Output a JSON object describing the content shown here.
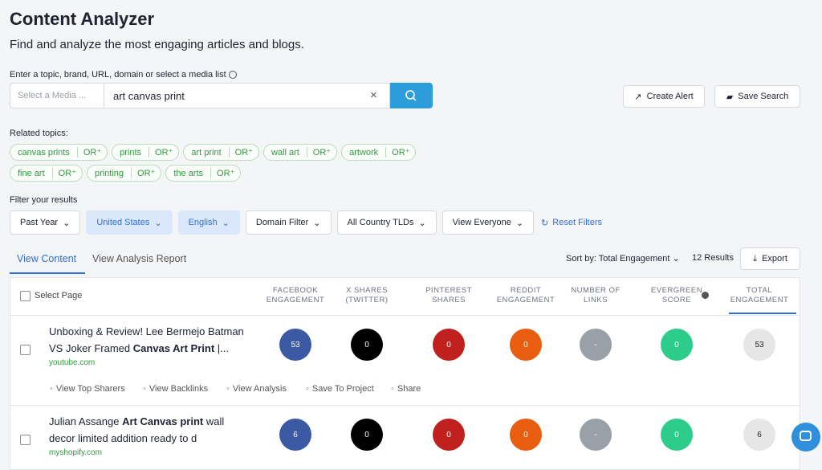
{
  "header": {
    "title": "Content Analyzer",
    "subtitle": "Find and analyze the most engaging articles and blogs."
  },
  "search": {
    "label": "Enter a topic, brand, URL, domain or select a media list",
    "media_placeholder": "Select a Media ...",
    "query": "art canvas print"
  },
  "actions": [
    "Create Alert",
    "Save Search"
  ],
  "related": {
    "label": "Related topics:",
    "or_label": "OR⁺",
    "topics": [
      "canvas prints",
      "prints",
      "art print",
      "wall art",
      "artwork",
      "fine art",
      "printing",
      "the arts"
    ]
  },
  "filters": {
    "label": "Filter your results",
    "items": [
      "Past Year",
      "United States",
      "English",
      "Domain Filter",
      "All Country TLDs",
      "View Everyone"
    ],
    "reset": "Reset Filters"
  },
  "tabs": [
    "View Content",
    "View Analysis Report"
  ],
  "toolbar": {
    "sort": "Sort by: Total Engagement",
    "results": "12 Results",
    "export": "Export"
  },
  "table": {
    "select_page": "Select Page",
    "columns": [
      "FACEBOOK ENGAGEMENT",
      "X SHARES (TWITTER)",
      "PINTEREST SHARES",
      "REDDIT ENGAGEMENT",
      "NUMBER OF LINKS",
      "EVERGREEN SCORE",
      "TOTAL ENGAGEMENT"
    ],
    "row_actions": [
      "View Top Sharers",
      "View Backlinks",
      "View Analysis",
      "Save To Project",
      "Share"
    ],
    "rows": [
      {
        "title": [
          "Unboxing & Review! Lee Bermejo Batman VS Joker Framed ",
          "Canvas Art Print",
          " |..."
        ],
        "domain": "youtube.com",
        "metrics": [
          53,
          0,
          0,
          0,
          "-",
          0,
          53
        ]
      },
      {
        "title": [
          "Julian Assange ",
          "Art Canvas print",
          " wall decor limited addition ready to d"
        ],
        "domain": "myshopify.com",
        "metrics": [
          6,
          0,
          0,
          0,
          "-",
          0,
          6
        ]
      }
    ]
  }
}
